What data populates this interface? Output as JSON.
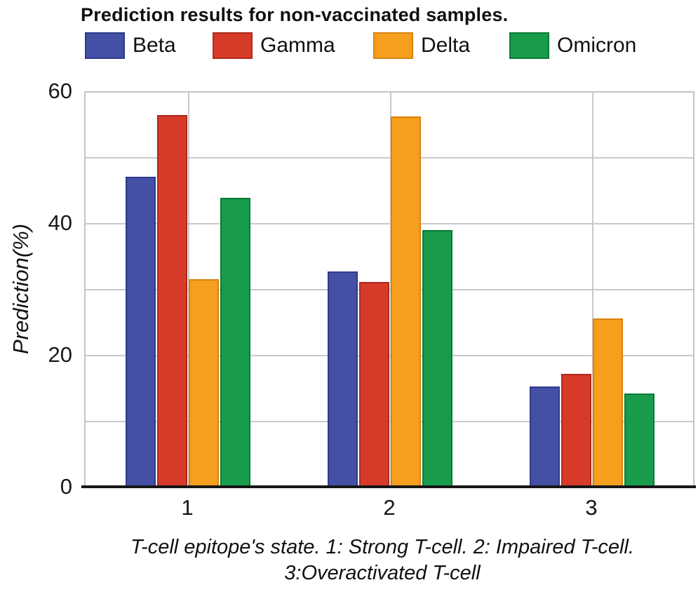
{
  "figure": {
    "title": "Prediction results for non-vaccinated samples."
  },
  "chart_data": {
    "type": "bar",
    "title": "Prediction results for non-vaccinated samples.",
    "categories": [
      "1",
      "2",
      "3"
    ],
    "series": [
      {
        "name": "Beta",
        "color": "#4350A4",
        "border_color": "#2F3A8E",
        "values": [
          47.0,
          32.7,
          15.2
        ]
      },
      {
        "name": "Gamma",
        "color": "#D63B2A",
        "border_color": "#B0291B",
        "values": [
          56.4,
          31.1,
          17.1
        ]
      },
      {
        "name": "Delta",
        "color": "#F69E1E",
        "border_color": "#DA830C",
        "values": [
          31.5,
          56.2,
          25.5
        ]
      },
      {
        "name": "Omicron",
        "color": "#189C4C",
        "border_color": "#0C7A38",
        "values": [
          43.8,
          38.9,
          14.1
        ]
      }
    ],
    "ylabel": "Prediction(%)",
    "xlabel": "T-cell epitope's state. 1: Strong T-cell. 2: Impaired T-cell. 3:Overactivated T-cell",
    "xlabel_lines": [
      "T-cell epitope's state. 1: Strong T-cell. 2: Impaired T-cell.",
      "3:Overactivated T-cell"
    ],
    "ytick_labels": [
      "60",
      "40",
      "20",
      "0"
    ],
    "ylim": [
      0,
      60
    ],
    "grid_step": 10,
    "grid": true,
    "legend_position": "top"
  }
}
